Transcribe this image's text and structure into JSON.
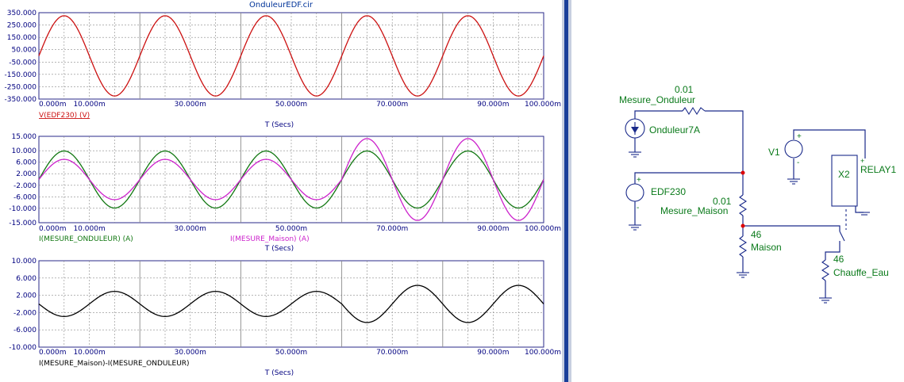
{
  "window": {
    "title": "OnduleurEDF.cir"
  },
  "colors": {
    "plot_frame": "#2a2a8a",
    "grid": "#8a8a8a",
    "axis_text": "#000080",
    "trace_red": "#cc1111",
    "trace_green": "#117711",
    "trace_magenta": "#cc22cc",
    "trace_black": "#000000",
    "schematic_text": "#0a7a1a",
    "schematic_wire": "#1a2a8a",
    "node_dot": "#dd0000"
  },
  "chart_data": [
    {
      "type": "line",
      "xlabel": "T (Secs)",
      "x_ticks": [
        "0.000m",
        "10.000m",
        "30.000m",
        "50.000m",
        "70.000m",
        "90.000m",
        "100.000m"
      ],
      "x_tick_values": [
        0,
        10,
        30,
        50,
        70,
        90,
        100
      ],
      "xlim": [
        0,
        100
      ],
      "ylim": [
        -350,
        350
      ],
      "y_ticks": [
        "350.000",
        "250.000",
        "150.000",
        "50.000",
        "-50.000",
        "-150.000",
        "-250.000",
        "-350.000"
      ],
      "y_tick_values": [
        350,
        250,
        150,
        50,
        -50,
        -150,
        -250,
        -350
      ],
      "grid": true,
      "series": [
        {
          "name": "V(EDF230) (V)",
          "color": "#cc1111",
          "waveform": "sine",
          "amplitude": 325,
          "frequency_hz": 50,
          "phase_deg": 0
        }
      ]
    },
    {
      "type": "line",
      "xlabel": "T (Secs)",
      "x_ticks": [
        "0.000m",
        "10.000m",
        "30.000m",
        "50.000m",
        "70.000m",
        "90.000m",
        "100.000m"
      ],
      "x_tick_values": [
        0,
        10,
        30,
        50,
        70,
        90,
        100
      ],
      "xlim": [
        0,
        100
      ],
      "ylim": [
        -15,
        15
      ],
      "y_ticks": [
        "15.000",
        "10.000",
        "6.000",
        "2.000",
        "-2.000",
        "-6.000",
        "-10.000",
        "-15.000"
      ],
      "y_tick_values": [
        15,
        10,
        6,
        2,
        -2,
        -6,
        -10,
        -15
      ],
      "grid": true,
      "series": [
        {
          "name": "I(MESURE_ONDULEUR) (A)",
          "color": "#117711",
          "waveform": "sine",
          "amplitude": 9.9,
          "frequency_hz": 50,
          "phase_deg": 0
        },
        {
          "name": "I(MESURE_Maison) (A)",
          "color": "#cc22cc",
          "waveform": "sine",
          "amplitude": 7.0,
          "amplitude_after_switch": 14.2,
          "switch_time_ms": 60,
          "frequency_hz": 50,
          "phase_deg": 0
        }
      ]
    },
    {
      "type": "line",
      "xlabel": "T (Secs)",
      "x_ticks": [
        "0.000m",
        "10.000m",
        "30.000m",
        "50.000m",
        "70.000m",
        "90.000m",
        "100.000m"
      ],
      "x_tick_values": [
        0,
        10,
        30,
        50,
        70,
        90,
        100
      ],
      "xlim": [
        0,
        100
      ],
      "ylim": [
        -10,
        10
      ],
      "y_ticks": [
        "10.000",
        "6.000",
        "2.000",
        "-2.000",
        "-6.000",
        "-10.000"
      ],
      "y_tick_values": [
        10,
        6,
        2,
        -2,
        -6,
        -10
      ],
      "grid": true,
      "series": [
        {
          "name": "I(MESURE_Maison)-I(MESURE_ONDULEUR)",
          "color": "#000000",
          "waveform": "sine",
          "amplitude": 2.9,
          "amplitude_after_switch": 4.3,
          "switch_time_ms": 60,
          "frequency_hz": 50,
          "phase_deg": 180
        }
      ]
    }
  ],
  "schematic": {
    "components": {
      "r_onduleur": {
        "value": "0.01",
        "name": "Mesure_Onduleur"
      },
      "i_source": {
        "name": "Onduleur7A"
      },
      "v_edf": {
        "name": "EDF230"
      },
      "r_maison_meas": {
        "value": "0.01",
        "name": "Mesure_Maison"
      },
      "r_maison": {
        "value": "46",
        "name": "Maison"
      },
      "r_chauffe": {
        "value": "46",
        "name": "Chauffe_Eau"
      },
      "v1": {
        "name": "V1"
      },
      "relay": {
        "name": "RELAY1",
        "ref": "X2"
      }
    },
    "plus_symbol": "+",
    "minus_symbol": "-"
  }
}
